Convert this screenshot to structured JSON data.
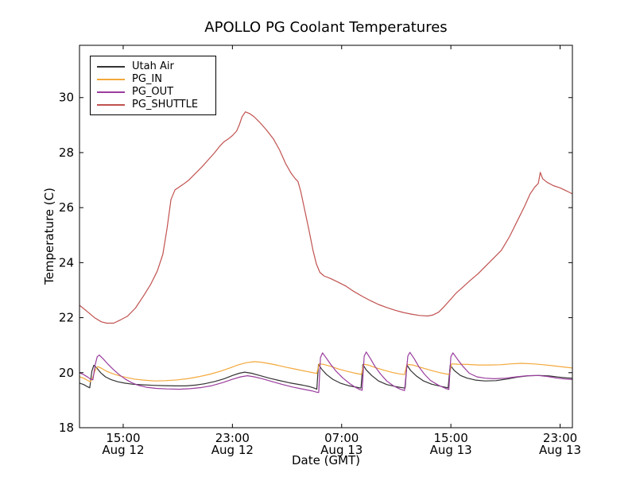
{
  "figure": {
    "background": "#ffffff",
    "axis_color": "#000000"
  },
  "chart_data": {
    "type": "line",
    "title": "APOLLO PG Coolant Temperatures",
    "xlabel": "Date (GMT)",
    "ylabel": "Temperature (C)",
    "x_unit": "hours since Aug 12 00:00 GMT",
    "xlim": [
      11.8,
      47.9
    ],
    "ylim": [
      18,
      31.9
    ],
    "grid": false,
    "legend_position": "upper left",
    "y_ticks": [
      18,
      20,
      22,
      24,
      26,
      28,
      30
    ],
    "x_ticks": [
      {
        "value": 15,
        "line1": "15:00",
        "line2": "Aug 12"
      },
      {
        "value": 23,
        "line1": "23:00",
        "line2": "Aug 12"
      },
      {
        "value": 31,
        "line1": "07:00",
        "line2": "Aug 13"
      },
      {
        "value": 39,
        "line1": "15:00",
        "line2": "Aug 13"
      },
      {
        "value": 47,
        "line1": "23:00",
        "line2": "Aug 13"
      }
    ],
    "series": [
      {
        "name": "Utah Air",
        "color": "#333333",
        "points": [
          [
            11.8,
            19.62
          ],
          [
            12.1,
            19.57
          ],
          [
            12.35,
            19.5
          ],
          [
            12.55,
            19.45
          ],
          [
            12.7,
            20.05
          ],
          [
            12.85,
            20.27
          ],
          [
            13.05,
            20.18
          ],
          [
            13.35,
            20.0
          ],
          [
            13.7,
            19.85
          ],
          [
            14.1,
            19.75
          ],
          [
            14.6,
            19.67
          ],
          [
            15.1,
            19.62
          ],
          [
            15.7,
            19.58
          ],
          [
            16.4,
            19.56
          ],
          [
            17.2,
            19.54
          ],
          [
            18.0,
            19.53
          ],
          [
            18.8,
            19.52
          ],
          [
            19.6,
            19.52
          ],
          [
            20.3,
            19.55
          ],
          [
            21.0,
            19.6
          ],
          [
            21.7,
            19.68
          ],
          [
            22.4,
            19.78
          ],
          [
            23.0,
            19.9
          ],
          [
            23.5,
            19.98
          ],
          [
            23.9,
            20.02
          ],
          [
            24.4,
            19.98
          ],
          [
            25.0,
            19.9
          ],
          [
            25.7,
            19.8
          ],
          [
            26.4,
            19.72
          ],
          [
            27.2,
            19.63
          ],
          [
            28.0,
            19.56
          ],
          [
            28.6,
            19.5
          ],
          [
            29.0,
            19.44
          ],
          [
            29.18,
            19.4
          ],
          [
            29.3,
            20.3
          ],
          [
            29.55,
            20.12
          ],
          [
            29.9,
            19.93
          ],
          [
            30.35,
            19.76
          ],
          [
            30.9,
            19.62
          ],
          [
            31.5,
            19.53
          ],
          [
            32.1,
            19.47
          ],
          [
            32.42,
            19.44
          ],
          [
            32.55,
            20.3
          ],
          [
            32.8,
            20.1
          ],
          [
            33.2,
            19.9
          ],
          [
            33.7,
            19.7
          ],
          [
            34.3,
            19.57
          ],
          [
            34.9,
            19.5
          ],
          [
            35.5,
            19.45
          ],
          [
            35.65,
            19.44
          ],
          [
            35.78,
            20.28
          ],
          [
            36.05,
            20.08
          ],
          [
            36.5,
            19.87
          ],
          [
            37.0,
            19.7
          ],
          [
            37.6,
            19.58
          ],
          [
            38.3,
            19.5
          ],
          [
            38.8,
            19.45
          ],
          [
            38.95,
            20.27
          ],
          [
            39.25,
            20.08
          ],
          [
            39.7,
            19.9
          ],
          [
            40.2,
            19.8
          ],
          [
            40.8,
            19.73
          ],
          [
            41.5,
            19.7
          ],
          [
            42.3,
            19.71
          ],
          [
            43.1,
            19.77
          ],
          [
            43.9,
            19.84
          ],
          [
            44.7,
            19.89
          ],
          [
            45.5,
            19.9
          ],
          [
            46.2,
            19.88
          ],
          [
            46.9,
            19.84
          ],
          [
            47.5,
            19.81
          ],
          [
            47.9,
            19.8
          ]
        ]
      },
      {
        "name": "PG_IN",
        "color": "#f3a83b",
        "points": [
          [
            11.8,
            19.85
          ],
          [
            12.1,
            19.8
          ],
          [
            12.4,
            19.72
          ],
          [
            12.6,
            19.67
          ],
          [
            12.75,
            19.8
          ],
          [
            12.95,
            20.1
          ],
          [
            13.15,
            20.22
          ],
          [
            13.45,
            20.15
          ],
          [
            13.8,
            20.05
          ],
          [
            14.2,
            19.97
          ],
          [
            14.7,
            19.89
          ],
          [
            15.2,
            19.83
          ],
          [
            15.8,
            19.77
          ],
          [
            16.5,
            19.73
          ],
          [
            17.3,
            19.7
          ],
          [
            18.1,
            19.71
          ],
          [
            19.0,
            19.74
          ],
          [
            19.8,
            19.79
          ],
          [
            20.6,
            19.86
          ],
          [
            21.4,
            19.95
          ],
          [
            22.1,
            20.05
          ],
          [
            22.8,
            20.17
          ],
          [
            23.4,
            20.28
          ],
          [
            24.0,
            20.36
          ],
          [
            24.6,
            20.4
          ],
          [
            25.1,
            20.38
          ],
          [
            25.7,
            20.33
          ],
          [
            26.3,
            20.27
          ],
          [
            27.0,
            20.19
          ],
          [
            27.7,
            20.12
          ],
          [
            28.4,
            20.05
          ],
          [
            29.0,
            19.99
          ],
          [
            29.18,
            19.97
          ],
          [
            29.35,
            20.32
          ],
          [
            29.7,
            20.3
          ],
          [
            30.2,
            20.23
          ],
          [
            30.8,
            20.13
          ],
          [
            31.4,
            20.05
          ],
          [
            31.9,
            19.99
          ],
          [
            32.3,
            19.95
          ],
          [
            32.45,
            19.94
          ],
          [
            32.6,
            20.31
          ],
          [
            33.0,
            20.27
          ],
          [
            33.5,
            20.18
          ],
          [
            34.1,
            20.09
          ],
          [
            34.7,
            20.01
          ],
          [
            35.2,
            19.96
          ],
          [
            35.6,
            19.93
          ],
          [
            35.78,
            20.3
          ],
          [
            36.2,
            20.28
          ],
          [
            36.8,
            20.19
          ],
          [
            37.5,
            20.09
          ],
          [
            38.2,
            20.0
          ],
          [
            38.7,
            19.95
          ],
          [
            38.9,
            19.94
          ],
          [
            39.05,
            20.32
          ],
          [
            39.5,
            20.31
          ],
          [
            40.2,
            20.3
          ],
          [
            41.0,
            20.28
          ],
          [
            41.8,
            20.28
          ],
          [
            42.6,
            20.29
          ],
          [
            43.4,
            20.32
          ],
          [
            44.2,
            20.34
          ],
          [
            45.0,
            20.32
          ],
          [
            45.8,
            20.29
          ],
          [
            46.5,
            20.25
          ],
          [
            47.2,
            20.21
          ],
          [
            47.9,
            20.17
          ]
        ]
      },
      {
        "name": "PG_OUT",
        "color": "#9a3d9e",
        "points": [
          [
            11.8,
            20.0
          ],
          [
            12.1,
            19.93
          ],
          [
            12.4,
            19.84
          ],
          [
            12.6,
            19.77
          ],
          [
            12.78,
            19.74
          ],
          [
            12.95,
            20.3
          ],
          [
            13.1,
            20.58
          ],
          [
            13.25,
            20.64
          ],
          [
            13.5,
            20.52
          ],
          [
            13.85,
            20.33
          ],
          [
            14.25,
            20.13
          ],
          [
            14.7,
            19.93
          ],
          [
            15.15,
            19.77
          ],
          [
            15.6,
            19.64
          ],
          [
            16.1,
            19.54
          ],
          [
            16.7,
            19.47
          ],
          [
            17.4,
            19.43
          ],
          [
            18.2,
            19.41
          ],
          [
            19.1,
            19.4
          ],
          [
            19.9,
            19.42
          ],
          [
            20.7,
            19.46
          ],
          [
            21.5,
            19.53
          ],
          [
            22.3,
            19.64
          ],
          [
            23.0,
            19.76
          ],
          [
            23.6,
            19.85
          ],
          [
            24.1,
            19.89
          ],
          [
            24.6,
            19.85
          ],
          [
            25.2,
            19.78
          ],
          [
            25.9,
            19.68
          ],
          [
            26.6,
            19.58
          ],
          [
            27.4,
            19.48
          ],
          [
            28.2,
            19.4
          ],
          [
            28.8,
            19.34
          ],
          [
            29.2,
            19.29
          ],
          [
            29.32,
            19.28
          ],
          [
            29.45,
            20.55
          ],
          [
            29.6,
            20.72
          ],
          [
            29.85,
            20.55
          ],
          [
            30.2,
            20.3
          ],
          [
            30.6,
            20.05
          ],
          [
            31.1,
            19.8
          ],
          [
            31.6,
            19.6
          ],
          [
            32.0,
            19.47
          ],
          [
            32.35,
            19.38
          ],
          [
            32.5,
            19.36
          ],
          [
            32.65,
            20.6
          ],
          [
            32.8,
            20.75
          ],
          [
            33.1,
            20.52
          ],
          [
            33.45,
            20.22
          ],
          [
            33.85,
            19.95
          ],
          [
            34.3,
            19.7
          ],
          [
            34.8,
            19.52
          ],
          [
            35.3,
            19.4
          ],
          [
            35.6,
            19.35
          ],
          [
            35.85,
            20.6
          ],
          [
            36.0,
            20.74
          ],
          [
            36.3,
            20.52
          ],
          [
            36.65,
            20.22
          ],
          [
            37.05,
            19.95
          ],
          [
            37.5,
            19.72
          ],
          [
            38.1,
            19.54
          ],
          [
            38.6,
            19.43
          ],
          [
            38.85,
            19.39
          ],
          [
            39.0,
            20.58
          ],
          [
            39.15,
            20.72
          ],
          [
            39.5,
            20.48
          ],
          [
            39.9,
            20.22
          ],
          [
            40.35,
            19.98
          ],
          [
            40.9,
            19.85
          ],
          [
            41.5,
            19.8
          ],
          [
            42.2,
            19.78
          ],
          [
            43.0,
            19.8
          ],
          [
            43.8,
            19.85
          ],
          [
            44.6,
            19.89
          ],
          [
            45.4,
            19.9
          ],
          [
            46.1,
            19.86
          ],
          [
            46.8,
            19.8
          ],
          [
            47.4,
            19.77
          ],
          [
            47.9,
            19.75
          ]
        ]
      },
      {
        "name": "PG_SHUTTLE",
        "color": "#c05250",
        "points": [
          [
            11.8,
            22.45
          ],
          [
            12.3,
            22.25
          ],
          [
            12.9,
            22.0
          ],
          [
            13.4,
            21.85
          ],
          [
            13.8,
            21.8
          ],
          [
            14.3,
            21.8
          ],
          [
            14.8,
            21.92
          ],
          [
            15.3,
            22.05
          ],
          [
            15.9,
            22.35
          ],
          [
            16.5,
            22.8
          ],
          [
            17.0,
            23.2
          ],
          [
            17.5,
            23.7
          ],
          [
            17.9,
            24.3
          ],
          [
            18.2,
            25.2
          ],
          [
            18.5,
            26.3
          ],
          [
            18.8,
            26.65
          ],
          [
            19.1,
            26.75
          ],
          [
            19.4,
            26.85
          ],
          [
            19.8,
            27.0
          ],
          [
            20.3,
            27.25
          ],
          [
            20.8,
            27.5
          ],
          [
            21.3,
            27.78
          ],
          [
            21.7,
            28.0
          ],
          [
            22.1,
            28.25
          ],
          [
            22.4,
            28.4
          ],
          [
            22.7,
            28.5
          ],
          [
            23.0,
            28.62
          ],
          [
            23.3,
            28.78
          ],
          [
            23.5,
            29.0
          ],
          [
            23.7,
            29.3
          ],
          [
            23.95,
            29.48
          ],
          [
            24.25,
            29.42
          ],
          [
            24.6,
            29.3
          ],
          [
            25.0,
            29.1
          ],
          [
            25.5,
            28.82
          ],
          [
            26.0,
            28.5
          ],
          [
            26.45,
            28.1
          ],
          [
            26.9,
            27.6
          ],
          [
            27.3,
            27.25
          ],
          [
            27.6,
            27.05
          ],
          [
            27.8,
            26.95
          ],
          [
            28.0,
            26.6
          ],
          [
            28.3,
            25.9
          ],
          [
            28.6,
            25.2
          ],
          [
            28.9,
            24.45
          ],
          [
            29.15,
            23.95
          ],
          [
            29.4,
            23.65
          ],
          [
            29.7,
            23.52
          ],
          [
            30.2,
            23.42
          ],
          [
            30.7,
            23.3
          ],
          [
            31.3,
            23.15
          ],
          [
            31.9,
            22.95
          ],
          [
            32.5,
            22.78
          ],
          [
            33.1,
            22.62
          ],
          [
            33.7,
            22.48
          ],
          [
            34.3,
            22.37
          ],
          [
            34.9,
            22.27
          ],
          [
            35.5,
            22.19
          ],
          [
            36.1,
            22.13
          ],
          [
            36.7,
            22.08
          ],
          [
            37.3,
            22.06
          ],
          [
            37.7,
            22.1
          ],
          [
            38.1,
            22.2
          ],
          [
            38.5,
            22.4
          ],
          [
            38.9,
            22.62
          ],
          [
            39.4,
            22.9
          ],
          [
            39.9,
            23.12
          ],
          [
            40.4,
            23.35
          ],
          [
            41.0,
            23.6
          ],
          [
            41.6,
            23.9
          ],
          [
            42.1,
            24.15
          ],
          [
            42.7,
            24.45
          ],
          [
            43.3,
            24.95
          ],
          [
            43.9,
            25.55
          ],
          [
            44.4,
            26.05
          ],
          [
            44.8,
            26.5
          ],
          [
            45.15,
            26.75
          ],
          [
            45.4,
            26.88
          ],
          [
            45.55,
            27.28
          ],
          [
            45.72,
            27.05
          ],
          [
            46.05,
            26.92
          ],
          [
            46.5,
            26.8
          ],
          [
            47.0,
            26.72
          ],
          [
            47.5,
            26.6
          ],
          [
            47.9,
            26.5
          ]
        ]
      }
    ]
  }
}
